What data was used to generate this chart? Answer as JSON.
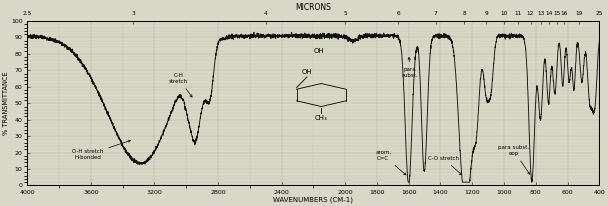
{
  "title": "MICRONS",
  "xlabel": "WAVENUMBERS (CM-1)",
  "ylabel": "% TRANSMITTANCE",
  "bg_color": "#d8d8c8",
  "line_color": "#111111",
  "grid_color": "#b0b090",
  "ylim": [
    0,
    100
  ],
  "yticks": [
    0,
    10,
    20,
    30,
    40,
    50,
    60,
    70,
    80,
    90,
    100
  ],
  "top_micron_labels": [
    "2.5",
    "3",
    "4",
    "5",
    "6",
    "7",
    "8",
    "9",
    "10",
    "11",
    "12",
    "13",
    "14",
    "15",
    "16",
    "19",
    "25"
  ],
  "top_micron_wavenumbers": [
    4000,
    3333,
    2500,
    2000,
    1667,
    1429,
    1250,
    1111,
    1000,
    909,
    833,
    769,
    714,
    667,
    625,
    526,
    400
  ],
  "xticks": [
    4000,
    3600,
    3200,
    2800,
    2400,
    2000,
    1800,
    1600,
    1400,
    1200,
    1000,
    800,
    600,
    400
  ],
  "xticklabels": [
    "4000",
    "3600",
    "3200",
    "2800",
    "2400",
    "2000",
    "1800",
    "1600",
    "1400",
    "1200",
    "1000",
    "800",
    "600",
    "400"
  ]
}
